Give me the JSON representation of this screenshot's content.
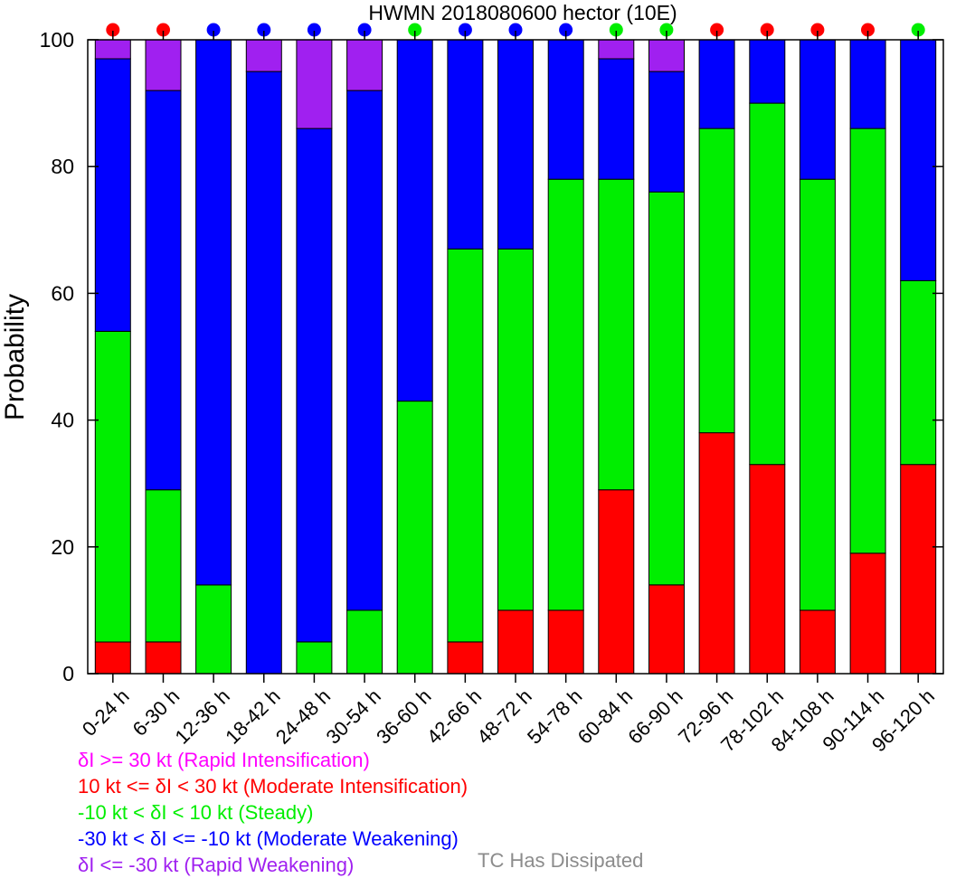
{
  "chart_data": {
    "type": "bar",
    "stacked": true,
    "title": "HWMN 2018080600 hector (10E)",
    "ylabel": "Probability",
    "ylim": [
      0,
      100
    ],
    "yticks": [
      0,
      20,
      40,
      60,
      80,
      100
    ],
    "categories": [
      "0-24 h",
      "6-30 h",
      "12-36 h",
      "18-42 h",
      "24-48 h",
      "30-54 h",
      "36-60 h",
      "42-66 h",
      "48-72 h",
      "54-78 h",
      "60-84 h",
      "66-90 h",
      "72-96 h",
      "78-102 h",
      "84-108 h",
      "90-114 h",
      "96-120 h"
    ],
    "series": [
      {
        "name": "Moderate Intensification",
        "color": "#ff0000",
        "values": [
          5,
          5,
          0,
          0,
          0,
          0,
          0,
          5,
          10,
          10,
          29,
          14,
          38,
          33,
          10,
          19,
          33
        ]
      },
      {
        "name": "Steady",
        "color": "#00ee00",
        "values": [
          49,
          24,
          14,
          0,
          5,
          10,
          43,
          62,
          57,
          68,
          49,
          62,
          48,
          57,
          68,
          67,
          29
        ]
      },
      {
        "name": "Moderate Weakening",
        "color": "#0000ff",
        "values": [
          43,
          63,
          86,
          95,
          81,
          82,
          57,
          33,
          33,
          22,
          19,
          19,
          14,
          10,
          22,
          14,
          38
        ]
      },
      {
        "name": "Rapid Weakening",
        "color": "#a020f0",
        "values": [
          3,
          8,
          0,
          5,
          14,
          8,
          0,
          0,
          0,
          0,
          3,
          5,
          0,
          0,
          0,
          0,
          0
        ]
      },
      {
        "name": "Rapid Intensification",
        "color": "#ff00ff",
        "values": [
          0,
          0,
          0,
          0,
          0,
          0,
          0,
          0,
          0,
          0,
          0,
          0,
          0,
          0,
          0,
          0,
          0
        ]
      }
    ],
    "top_markers": [
      "#ff0000",
      "#ff0000",
      "#0000ff",
      "#0000ff",
      "#0000ff",
      "#0000ff",
      "#00ee00",
      "#0000ff",
      "#0000ff",
      "#0000ff",
      "#00ee00",
      "#00ee00",
      "#ff0000",
      "#ff0000",
      "#ff0000",
      "#ff0000",
      "#00ee00"
    ],
    "grid": false
  },
  "legend": {
    "items": [
      {
        "text": "δI >= 30 kt (Rapid Intensification)",
        "color": "#ff00ff"
      },
      {
        "text": "10 kt <= δI < 30 kt (Moderate Intensification)",
        "color": "#ff0000"
      },
      {
        "text": "-10 kt < δI < 10 kt (Steady)",
        "color": "#00ee00"
      },
      {
        "text": "-30 kt < δI <= -10 kt (Moderate Weakening)",
        "color": "#0000ff"
      },
      {
        "text": "δI <= -30 kt (Rapid Weakening)",
        "color": "#a020f0"
      }
    ],
    "dissipated": {
      "text": "TC Has Dissipated",
      "color": "#8c8c8c"
    }
  }
}
